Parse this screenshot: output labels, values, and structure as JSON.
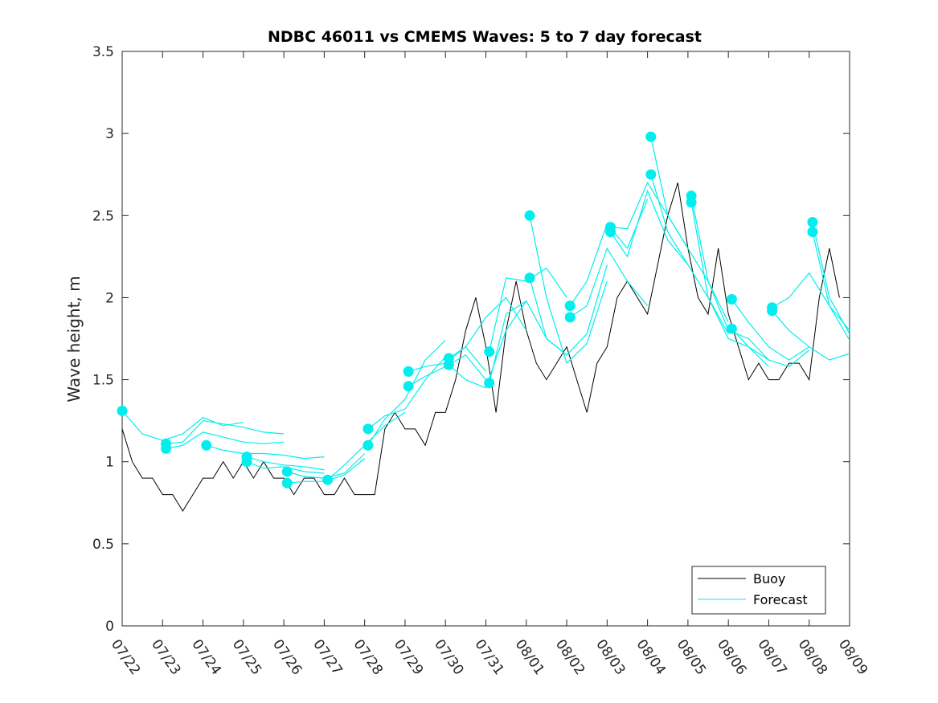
{
  "chart_data": {
    "type": "line",
    "title": "NDBC 46011 vs CMEMS Waves: 5 to 7 day forecast",
    "xlabel": "",
    "ylabel": "Wave height, m",
    "x_range": [
      "07/22",
      "08/09"
    ],
    "ylim": [
      0,
      3.5
    ],
    "x_ticks": [
      "07/22",
      "07/23",
      "07/24",
      "07/25",
      "07/26",
      "07/27",
      "07/28",
      "07/29",
      "07/30",
      "07/31",
      "08/01",
      "08/02",
      "08/03",
      "08/04",
      "08/05",
      "08/06",
      "08/07",
      "08/08",
      "08/09"
    ],
    "y_ticks": [
      0,
      0.5,
      1,
      1.5,
      2,
      2.5,
      3,
      3.5
    ],
    "y_tick_labels": [
      "0",
      "0.5",
      "1",
      "1.5",
      "2",
      "2.5",
      "3",
      "3.5"
    ],
    "grid": false,
    "legend_position": "bottom-right",
    "colors": {
      "buoy": "#000000",
      "forecast": "#00eeee"
    },
    "series": [
      {
        "name": "Buoy",
        "x": [
          "07/22 00:00",
          "07/22 06:00",
          "07/22 12:00",
          "07/22 18:00",
          "07/23 00:00",
          "07/23 06:00",
          "07/23 12:00",
          "07/23 18:00",
          "07/24 00:00",
          "07/24 06:00",
          "07/24 12:00",
          "07/24 18:00",
          "07/25 00:00",
          "07/25 06:00",
          "07/25 12:00",
          "07/25 18:00",
          "07/26 00:00",
          "07/26 06:00",
          "07/26 12:00",
          "07/26 18:00",
          "07/27 00:00",
          "07/27 06:00",
          "07/27 12:00",
          "07/27 18:00",
          "07/28 00:00",
          "07/28 06:00",
          "07/28 12:00",
          "07/28 18:00",
          "07/29 00:00",
          "07/29 06:00",
          "07/29 12:00",
          "07/29 18:00",
          "07/30 00:00",
          "07/30 06:00",
          "07/30 12:00",
          "07/30 18:00",
          "07/31 00:00",
          "07/31 06:00",
          "07/31 12:00",
          "07/31 18:00",
          "08/01 00:00",
          "08/01 06:00",
          "08/01 12:00",
          "08/01 18:00",
          "08/02 00:00",
          "08/02 06:00",
          "08/02 12:00",
          "08/02 18:00",
          "08/03 00:00",
          "08/03 06:00",
          "08/03 12:00",
          "08/03 18:00",
          "08/04 00:00",
          "08/04 06:00",
          "08/04 12:00",
          "08/04 18:00",
          "08/05 00:00",
          "08/05 06:00",
          "08/05 12:00",
          "08/05 18:00",
          "08/06 00:00",
          "08/06 06:00",
          "08/06 12:00",
          "08/06 18:00",
          "08/07 00:00",
          "08/07 06:00",
          "08/07 12:00",
          "08/07 18:00",
          "08/08 00:00",
          "08/08 06:00",
          "08/08 12:00",
          "08/08 18:00"
        ],
        "values": [
          1.2,
          1.0,
          0.9,
          0.9,
          0.8,
          0.8,
          0.7,
          0.8,
          0.9,
          0.9,
          1.0,
          0.9,
          1.0,
          0.9,
          1.0,
          0.9,
          0.9,
          0.8,
          0.9,
          0.9,
          0.8,
          0.8,
          0.9,
          0.8,
          0.8,
          0.8,
          1.2,
          1.3,
          1.2,
          1.2,
          1.1,
          1.3,
          1.3,
          1.5,
          1.8,
          2.0,
          1.7,
          1.3,
          1.8,
          2.1,
          1.8,
          1.6,
          1.5,
          1.6,
          1.7,
          1.5,
          1.3,
          1.6,
          1.7,
          2.0,
          2.1,
          2.0,
          1.9,
          2.2,
          2.5,
          2.7,
          2.3,
          2.0,
          1.9,
          2.3,
          1.9,
          1.7,
          1.5,
          1.6,
          1.5,
          1.5,
          1.6,
          1.6,
          1.5,
          2.0,
          2.3,
          2.0
        ]
      },
      {
        "name": "Forecast",
        "runs": [
          {
            "x": [
              "07/22 00:00",
              "07/22 12:00",
              "07/23 00:00",
              "07/23 12:00",
              "07/24 00:00",
              "07/24 12:00",
              "07/25 00:00"
            ],
            "values": [
              1.31,
              1.17,
              1.13,
              1.17,
              1.27,
              1.22,
              1.24
            ]
          },
          {
            "x": [
              "07/23 02:00",
              "07/23 12:00",
              "07/24 00:00",
              "07/24 12:00",
              "07/25 00:00",
              "07/25 12:00",
              "07/26 00:00"
            ],
            "values": [
              1.11,
              1.12,
              1.25,
              1.23,
              1.21,
              1.18,
              1.17
            ]
          },
          {
            "x": [
              "07/23 02:00",
              "07/23 12:00",
              "07/24 00:00",
              "07/24 12:00",
              "07/25 00:00",
              "07/25 12:00",
              "07/26 00:00"
            ],
            "values": [
              1.08,
              1.1,
              1.18,
              1.15,
              1.12,
              1.11,
              1.12
            ]
          },
          {
            "x": [
              "07/24 02:00",
              "07/24 12:00",
              "07/25 00:00",
              "07/25 12:00",
              "07/26 00:00",
              "07/26 12:00",
              "07/27 00:00"
            ],
            "values": [
              1.1,
              1.07,
              1.05,
              1.05,
              1.04,
              1.02,
              1.03
            ]
          },
          {
            "x": [
              "07/25 02:00",
              "07/25 12:00",
              "07/26 00:00",
              "07/26 12:00",
              "07/27 00:00"
            ],
            "values": [
              1.03,
              1.0,
              0.98,
              0.97,
              0.95
            ]
          },
          {
            "x": [
              "07/25 02:00",
              "07/25 12:00",
              "07/26 00:00",
              "07/26 12:00",
              "07/27 00:00"
            ],
            "values": [
              1.0,
              0.96,
              0.97,
              0.94,
              0.93
            ]
          },
          {
            "x": [
              "07/26 02:00",
              "07/26 12:00",
              "07/27 00:00",
              "07/27 12:00",
              "07/28 00:00"
            ],
            "values": [
              0.94,
              0.91,
              0.9,
              0.93,
              1.05
            ]
          },
          {
            "x": [
              "07/26 02:00",
              "07/26 12:00",
              "07/27 00:00",
              "07/27 12:00",
              "07/28 00:00"
            ],
            "values": [
              0.87,
              0.88,
              0.88,
              0.92,
              1.02
            ]
          },
          {
            "x": [
              "07/27 02:00",
              "07/27 12:00",
              "07/28 00:00",
              "07/28 12:00",
              "07/29 00:00"
            ],
            "values": [
              0.89,
              0.98,
              1.1,
              1.22,
              1.3
            ]
          },
          {
            "x": [
              "07/28 02:00",
              "07/28 12:00",
              "07/29 00:00",
              "07/29 12:00",
              "07/30 00:00"
            ],
            "values": [
              1.2,
              1.28,
              1.32,
              1.5,
              1.64
            ]
          },
          {
            "x": [
              "07/28 02:00",
              "07/28 12:00",
              "07/29 00:00",
              "07/29 12:00",
              "07/30 00:00"
            ],
            "values": [
              1.1,
              1.26,
              1.38,
              1.62,
              1.74
            ]
          },
          {
            "x": [
              "07/29 02:00",
              "07/29 12:00",
              "07/30 00:00",
              "07/30 12:00",
              "07/31 00:00"
            ],
            "values": [
              1.55,
              1.58,
              1.6,
              1.7,
              1.55
            ]
          },
          {
            "x": [
              "07/29 02:00",
              "07/29 12:00",
              "07/30 00:00",
              "07/30 12:00",
              "07/31 00:00"
            ],
            "values": [
              1.46,
              1.52,
              1.58,
              1.65,
              1.5
            ]
          },
          {
            "x": [
              "07/30 02:00",
              "07/30 12:00",
              "07/31 00:00",
              "07/31 12:00",
              "08/01 00:00"
            ],
            "values": [
              1.63,
              1.7,
              1.88,
              2.0,
              1.8
            ]
          },
          {
            "x": [
              "07/30 02:00",
              "07/30 12:00",
              "07/31 00:00",
              "07/31 12:00",
              "08/01 00:00"
            ],
            "values": [
              1.59,
              1.5,
              1.45,
              1.8,
              1.98
            ]
          },
          {
            "x": [
              "07/31 02:00",
              "07/31 12:00",
              "08/01 00:00",
              "08/01 12:00",
              "08/02 00:00"
            ],
            "values": [
              1.67,
              2.12,
              2.1,
              2.18,
              2.0
            ]
          },
          {
            "x": [
              "07/31 02:00",
              "07/31 12:00",
              "08/01 00:00",
              "08/01 12:00",
              "08/02 00:00"
            ],
            "values": [
              1.48,
              1.9,
              1.98,
              1.75,
              1.65
            ]
          },
          {
            "x": [
              "08/01 02:00",
              "08/01 12:00",
              "08/02 00:00",
              "08/02 12:00",
              "08/03 00:00"
            ],
            "values": [
              2.5,
              2.0,
              1.6,
              1.72,
              2.1
            ]
          },
          {
            "x": [
              "08/01 02:00",
              "08/01 12:00",
              "08/02 00:00",
              "08/02 12:00",
              "08/03 00:00"
            ],
            "values": [
              2.12,
              1.75,
              1.65,
              1.78,
              2.2
            ]
          },
          {
            "x": [
              "08/02 02:00",
              "08/02 12:00",
              "08/03 00:00",
              "08/03 12:00",
              "08/04 00:00"
            ],
            "values": [
              1.95,
              2.1,
              2.45,
              2.3,
              2.6
            ]
          },
          {
            "x": [
              "08/02 02:00",
              "08/02 12:00",
              "08/03 00:00",
              "08/03 12:00",
              "08/04 00:00"
            ],
            "values": [
              1.88,
              1.95,
              2.3,
              2.1,
              1.95
            ]
          },
          {
            "x": [
              "08/03 02:00",
              "08/03 12:00",
              "08/04 00:00",
              "08/04 12:00",
              "08/05 00:00"
            ],
            "values": [
              2.43,
              2.42,
              2.7,
              2.5,
              2.3
            ]
          },
          {
            "x": [
              "08/03 02:00",
              "08/03 12:00",
              "08/04 00:00",
              "08/04 12:00",
              "08/05 00:00"
            ],
            "values": [
              2.4,
              2.25,
              2.65,
              2.35,
              2.2
            ]
          },
          {
            "x": [
              "08/04 02:00",
              "08/04 12:00",
              "08/05 00:00",
              "08/05 12:00",
              "08/06 00:00"
            ],
            "values": [
              2.98,
              2.5,
              2.3,
              2.1,
              1.85
            ]
          },
          {
            "x": [
              "08/04 02:00",
              "08/04 12:00",
              "08/05 00:00",
              "08/05 12:00",
              "08/06 00:00"
            ],
            "values": [
              2.75,
              2.4,
              2.2,
              2.0,
              1.78
            ]
          },
          {
            "x": [
              "08/05 02:00",
              "08/05 12:00",
              "08/06 00:00",
              "08/06 12:00",
              "08/07 00:00"
            ],
            "values": [
              2.62,
              2.1,
              1.8,
              1.75,
              1.62
            ]
          },
          {
            "x": [
              "08/05 02:00",
              "08/05 12:00",
              "08/06 00:00",
              "08/06 12:00",
              "08/07 00:00"
            ],
            "values": [
              2.58,
              2.0,
              1.75,
              1.7,
              1.58
            ]
          },
          {
            "x": [
              "08/06 02:00",
              "08/06 12:00",
              "08/07 00:00",
              "08/07 12:00",
              "08/08 00:00"
            ],
            "values": [
              1.99,
              1.85,
              1.7,
              1.62,
              1.7
            ]
          },
          {
            "x": [
              "08/06 02:00",
              "08/06 12:00",
              "08/07 00:00",
              "08/07 12:00",
              "08/08 00:00"
            ],
            "values": [
              1.81,
              1.7,
              1.62,
              1.58,
              1.68
            ]
          },
          {
            "x": [
              "08/07 02:00",
              "08/07 12:00",
              "08/08 00:00",
              "08/08 12:00",
              "08/09 00:00"
            ],
            "values": [
              1.94,
              2.0,
              2.15,
              1.95,
              1.8
            ]
          },
          {
            "x": [
              "08/07 02:00",
              "08/07 12:00",
              "08/08 00:00",
              "08/08 12:00",
              "08/09 00:00"
            ],
            "values": [
              1.92,
              1.8,
              1.7,
              1.62,
              1.66
            ]
          },
          {
            "x": [
              "08/08 02:00",
              "08/08 12:00",
              "08/09 00:00"
            ],
            "values": [
              2.46,
              2.0,
              1.78
            ]
          },
          {
            "x": [
              "08/08 02:00",
              "08/08 12:00",
              "08/09 00:00"
            ],
            "values": [
              2.4,
              1.95,
              1.74
            ]
          }
        ]
      }
    ]
  }
}
